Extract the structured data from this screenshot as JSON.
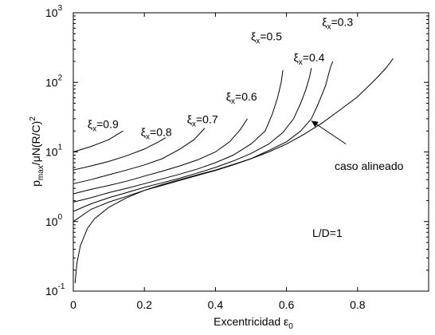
{
  "chart_data": {
    "type": "line",
    "xlabel": "Excentricidad ε",
    "xlabel_sub": "0",
    "ylabel": "p",
    "ylabel_sub": "max",
    "ylabel_rest": "/μN(R/C)",
    "ylabel_sup": "2",
    "x_ticks": [
      "0",
      "0.2",
      "0.4",
      "0.6",
      "0.8"
    ],
    "y_ticks": [
      {
        "base": "10",
        "exp": "-1"
      },
      {
        "base": "10",
        "exp": "0"
      },
      {
        "base": "10",
        "exp": "1"
      },
      {
        "base": "10",
        "exp": "2"
      },
      {
        "base": "10",
        "exp": "3"
      }
    ],
    "xlim": [
      0,
      1
    ],
    "ylim": [
      0.1,
      1000
    ],
    "yscale": "log",
    "grid": false,
    "annotations": {
      "text_lD": "L/D=1",
      "text_aligned": "caso alineado",
      "arrow_from": [
        0.7,
        10
      ],
      "arrow_to": [
        0.67,
        28
      ]
    },
    "series": [
      {
        "label_greek": "ξ",
        "label_sub": "x",
        "label_val": "=0.9",
        "label_at": [
          0.04,
          22
        ],
        "points": [
          [
            0,
            10
          ],
          [
            0.05,
            12
          ],
          [
            0.1,
            15
          ],
          [
            0.14,
            20
          ]
        ]
      },
      {
        "label_greek": "ξ",
        "label_sub": "x",
        "label_val": "=0.8",
        "label_at": [
          0.19,
          17
        ],
        "points": [
          [
            0,
            5.5
          ],
          [
            0.05,
            6.3
          ],
          [
            0.1,
            7.3
          ],
          [
            0.15,
            8.8
          ],
          [
            0.2,
            11
          ],
          [
            0.24,
            14
          ],
          [
            0.26,
            16
          ]
        ]
      },
      {
        "label_greek": "ξ",
        "label_sub": "x",
        "label_val": "=0.7",
        "label_at": [
          0.32,
          26
        ],
        "points": [
          [
            0,
            3.5
          ],
          [
            0.05,
            4.0
          ],
          [
            0.1,
            4.7
          ],
          [
            0.15,
            5.5
          ],
          [
            0.2,
            6.5
          ],
          [
            0.25,
            8.0
          ],
          [
            0.3,
            11
          ],
          [
            0.34,
            15
          ],
          [
            0.37,
            22
          ]
        ]
      },
      {
        "label_greek": "ξ",
        "label_sub": "x",
        "label_val": "=0.6",
        "label_at": [
          0.43,
          55
        ],
        "points": [
          [
            0,
            2.5
          ],
          [
            0.05,
            2.9
          ],
          [
            0.1,
            3.3
          ],
          [
            0.15,
            3.8
          ],
          [
            0.2,
            4.5
          ],
          [
            0.25,
            5.3
          ],
          [
            0.3,
            6.3
          ],
          [
            0.35,
            7.7
          ],
          [
            0.4,
            10
          ],
          [
            0.44,
            14
          ],
          [
            0.47,
            21
          ],
          [
            0.49,
            30
          ]
        ]
      },
      {
        "label_greek": "ξ",
        "label_sub": "x",
        "label_val": "=0.5",
        "label_at": [
          0.5,
          400
        ],
        "points": [
          [
            0,
            1.9
          ],
          [
            0.05,
            2.2
          ],
          [
            0.1,
            2.6
          ],
          [
            0.15,
            3.0
          ],
          [
            0.2,
            3.5
          ],
          [
            0.25,
            4.1
          ],
          [
            0.3,
            4.8
          ],
          [
            0.35,
            5.7
          ],
          [
            0.4,
            7.0
          ],
          [
            0.45,
            9.0
          ],
          [
            0.5,
            13
          ],
          [
            0.54,
            20
          ],
          [
            0.56,
            35
          ],
          [
            0.575,
            60
          ],
          [
            0.585,
            100
          ],
          [
            0.59,
            150
          ]
        ]
      },
      {
        "label_greek": "ξ",
        "label_sub": "x",
        "label_val": "=0.4",
        "label_at": [
          0.62,
          200
        ],
        "points": [
          [
            0,
            1.4
          ],
          [
            0.05,
            1.8
          ],
          [
            0.1,
            2.2
          ],
          [
            0.15,
            2.6
          ],
          [
            0.2,
            3.1
          ],
          [
            0.25,
            3.6
          ],
          [
            0.3,
            4.2
          ],
          [
            0.35,
            5.0
          ],
          [
            0.4,
            6.0
          ],
          [
            0.45,
            7.4
          ],
          [
            0.5,
            9.5
          ],
          [
            0.55,
            13
          ],
          [
            0.59,
            19
          ],
          [
            0.62,
            30
          ],
          [
            0.64,
            50
          ],
          [
            0.655,
            80
          ],
          [
            0.665,
            120
          ],
          [
            0.67,
            160
          ]
        ]
      },
      {
        "label_greek": "ξ",
        "label_sub": "x",
        "label_val": "=0.3",
        "label_at": [
          0.7,
          650
        ],
        "points": [
          [
            0,
            1.0
          ],
          [
            0.05,
            1.5
          ],
          [
            0.1,
            1.9
          ],
          [
            0.15,
            2.3
          ],
          [
            0.2,
            2.8
          ],
          [
            0.25,
            3.3
          ],
          [
            0.3,
            3.9
          ],
          [
            0.35,
            4.6
          ],
          [
            0.4,
            5.4
          ],
          [
            0.45,
            6.5
          ],
          [
            0.5,
            8.0
          ],
          [
            0.55,
            10.5
          ],
          [
            0.6,
            14
          ],
          [
            0.64,
            20
          ],
          [
            0.67,
            30
          ],
          [
            0.69,
            50
          ],
          [
            0.71,
            90
          ],
          [
            0.72,
            140
          ],
          [
            0.725,
            170
          ],
          [
            0.73,
            200
          ]
        ]
      },
      {
        "label_greek": "",
        "label_sub": "",
        "label_val": "",
        "label_at": null,
        "points": [
          [
            0.005,
            0.13
          ],
          [
            0.01,
            0.25
          ],
          [
            0.02,
            0.45
          ],
          [
            0.04,
            0.8
          ],
          [
            0.06,
            1.1
          ],
          [
            0.1,
            1.6
          ],
          [
            0.15,
            2.2
          ],
          [
            0.2,
            2.8
          ],
          [
            0.25,
            3.4
          ],
          [
            0.3,
            4.0
          ],
          [
            0.35,
            4.7
          ],
          [
            0.4,
            5.5
          ],
          [
            0.45,
            6.6
          ],
          [
            0.5,
            8.0
          ],
          [
            0.55,
            10
          ],
          [
            0.6,
            13
          ],
          [
            0.65,
            18
          ],
          [
            0.7,
            26
          ],
          [
            0.75,
            40
          ],
          [
            0.8,
            62
          ],
          [
            0.85,
            110
          ],
          [
            0.88,
            160
          ],
          [
            0.9,
            220
          ]
        ]
      }
    ]
  }
}
